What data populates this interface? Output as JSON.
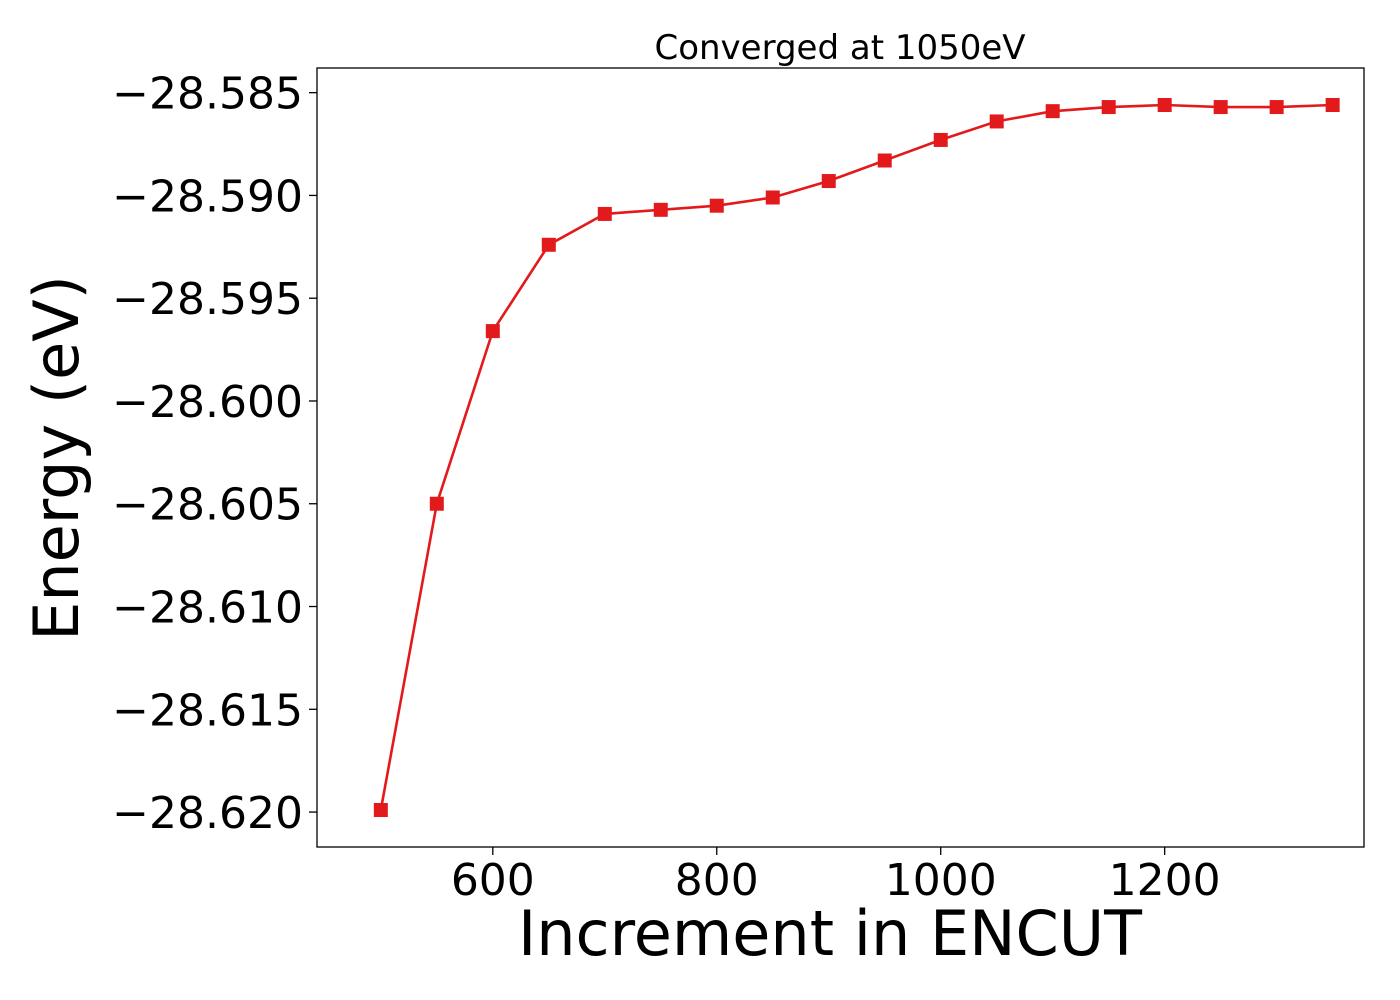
{
  "colors": {
    "series": "#e31a1c",
    "axes": "#000000",
    "background": "#ffffff"
  },
  "chart_data": {
    "type": "line",
    "title": "Converged at 1050eV",
    "xlabel": "Increment in ENCUT",
    "ylabel": "Energy (eV)",
    "xlim": [
      443,
      1378
    ],
    "ylim": [
      -28.6217,
      -28.5838
    ],
    "xticks": [
      600,
      800,
      1000,
      1200
    ],
    "xtick_labels": [
      "600",
      "800",
      "1000",
      "1200"
    ],
    "yticks": [
      -28.585,
      -28.59,
      -28.595,
      -28.6,
      -28.605,
      -28.61,
      -28.615,
      -28.62
    ],
    "ytick_labels": [
      "−28.585",
      "−28.590",
      "−28.595",
      "−28.600",
      "−28.605",
      "−28.610",
      "−28.615",
      "−28.620"
    ],
    "grid": false,
    "marker": "square",
    "series": [
      {
        "x": [
          500,
          550,
          600,
          650,
          700,
          750,
          800,
          850,
          900,
          950,
          1000,
          1050,
          1100,
          1150,
          1200,
          1250,
          1300,
          1350
        ],
        "y": [
          -28.6199,
          -28.605,
          -28.5966,
          -28.5924,
          -28.5909,
          -28.5907,
          -28.5905,
          -28.5901,
          -28.5893,
          -28.5883,
          -28.5873,
          -28.5864,
          -28.5859,
          -28.5857,
          -28.5856,
          -28.5857,
          -28.5857,
          -28.5856
        ]
      }
    ]
  }
}
